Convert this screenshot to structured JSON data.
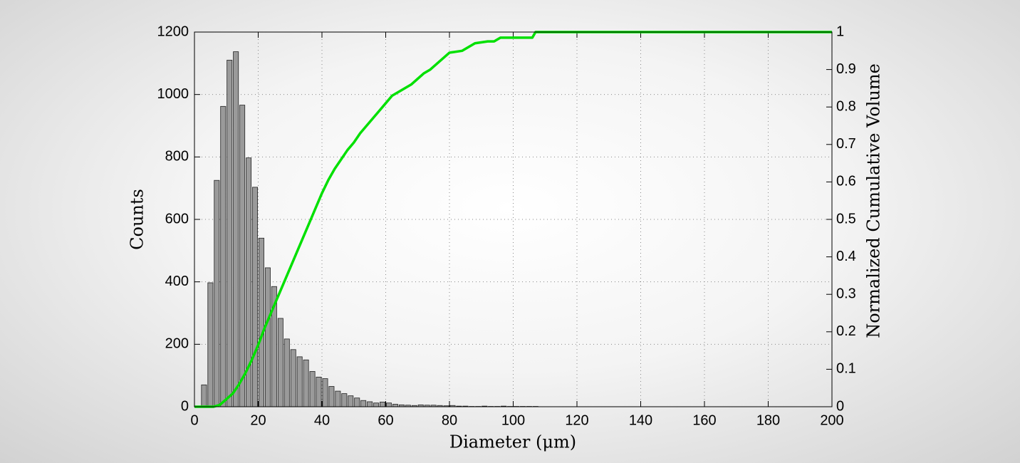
{
  "chart_data": {
    "type": "histogram",
    "xlabel": "Diameter (μm)",
    "ylabel": "Counts",
    "y2label": "Normalized Cumulative Volume",
    "xlim": [
      0,
      200
    ],
    "xticks": [
      0,
      20,
      40,
      60,
      80,
      100,
      120,
      140,
      160,
      180,
      200
    ],
    "ylim": [
      0,
      1200
    ],
    "yticks": [
      0,
      200,
      400,
      600,
      800,
      1000,
      1200
    ],
    "y2lim": [
      0,
      1
    ],
    "y2ticks": [
      0,
      0.1,
      0.2,
      0.3,
      0.4,
      0.5,
      0.6,
      0.7,
      0.8,
      0.9,
      1
    ],
    "grid": true,
    "series": [
      {
        "type": "histogram",
        "color": "#9a9a9a",
        "bins": [
          2,
          4,
          6,
          8,
          10,
          12,
          14,
          16,
          18,
          20,
          22,
          24,
          26,
          28,
          30,
          32,
          34,
          36,
          38,
          40,
          42,
          44,
          46,
          48,
          50,
          52,
          54,
          56,
          58,
          60,
          62,
          64,
          66,
          68,
          70,
          72,
          74,
          76,
          78,
          80,
          82,
          84,
          86,
          88,
          90,
          92,
          94,
          96,
          98,
          100,
          102,
          104,
          106,
          108
        ],
        "values": [
          70,
          397,
          725,
          962,
          1110,
          1137,
          966,
          797,
          703,
          540,
          445,
          385,
          283,
          217,
          183,
          160,
          150,
          113,
          95,
          90,
          65,
          50,
          42,
          35,
          28,
          20,
          16,
          12,
          15,
          12,
          8,
          6,
          5,
          4,
          6,
          5,
          5,
          4,
          3,
          4,
          2,
          2,
          1,
          1,
          2,
          1,
          1,
          2,
          1,
          1,
          1,
          1,
          1
        ]
      },
      {
        "type": "line",
        "color": "#00e000",
        "axis": "y2",
        "x": [
          0,
          6,
          8,
          10,
          12,
          14,
          16,
          18,
          20,
          22,
          24,
          26,
          28,
          30,
          32,
          34,
          36,
          38,
          40,
          42,
          44,
          46,
          48,
          50,
          52,
          54,
          56,
          58,
          60,
          62,
          64,
          66,
          68,
          70,
          72,
          74,
          76,
          78,
          80,
          84,
          86,
          88,
          92,
          94,
          96,
          104,
          106,
          107,
          200
        ],
        "values": [
          0,
          0,
          0.005,
          0.02,
          0.035,
          0.06,
          0.09,
          0.125,
          0.165,
          0.21,
          0.25,
          0.29,
          0.33,
          0.37,
          0.41,
          0.45,
          0.49,
          0.53,
          0.57,
          0.605,
          0.635,
          0.66,
          0.685,
          0.705,
          0.73,
          0.75,
          0.77,
          0.79,
          0.81,
          0.83,
          0.84,
          0.85,
          0.86,
          0.875,
          0.89,
          0.9,
          0.915,
          0.93,
          0.945,
          0.95,
          0.96,
          0.97,
          0.975,
          0.975,
          0.985,
          0.985,
          0.985,
          1,
          1
        ]
      }
    ]
  }
}
